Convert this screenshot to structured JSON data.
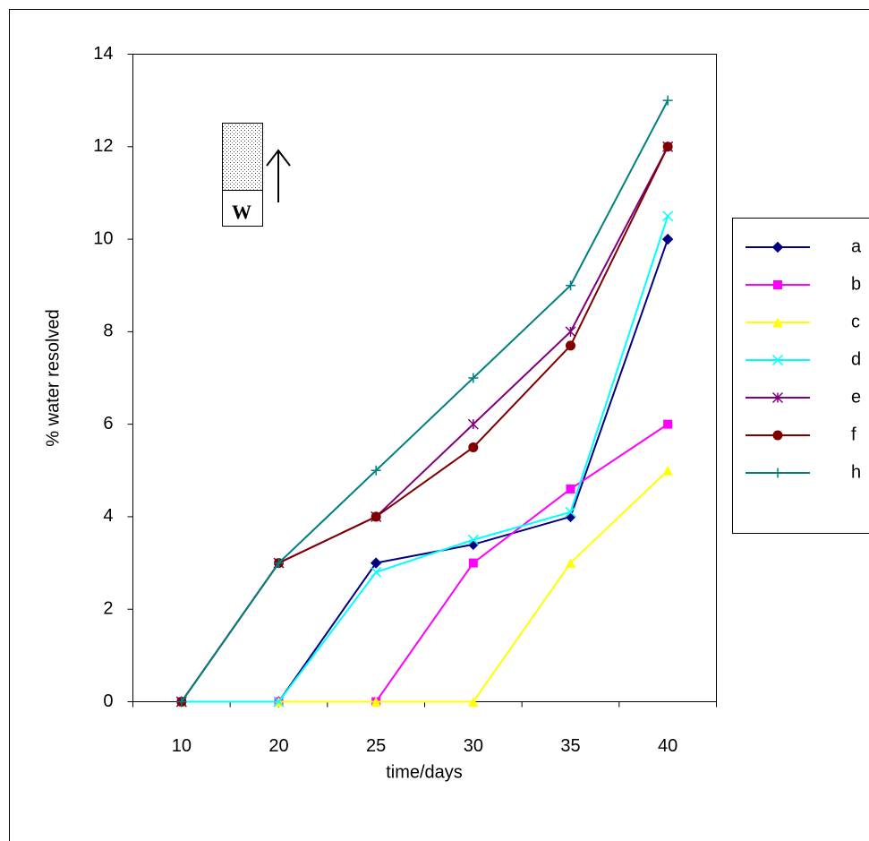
{
  "chart_data": {
    "type": "line",
    "categories": [
      "10",
      "20",
      "25",
      "30",
      "35",
      "40"
    ],
    "series": [
      {
        "name": "a",
        "color": "#000080",
        "marker": "diamond",
        "values": [
          0,
          0,
          3,
          3.4,
          4,
          10
        ]
      },
      {
        "name": "b",
        "color": "#ff00ff",
        "marker": "square",
        "values": [
          0,
          0,
          0,
          3,
          4.6,
          6
        ]
      },
      {
        "name": "c",
        "color": "#ffff00",
        "marker": "triangle",
        "values": [
          0,
          0,
          0,
          0,
          3,
          5
        ]
      },
      {
        "name": "d",
        "color": "#00ffff",
        "marker": "x",
        "values": [
          0,
          0,
          2.8,
          3.5,
          4.1,
          10.5
        ]
      },
      {
        "name": "e",
        "color": "#800080",
        "marker": "star",
        "values": [
          0,
          3,
          4,
          6,
          8,
          12
        ]
      },
      {
        "name": "f",
        "color": "#800000",
        "marker": "circle",
        "values": [
          0,
          3,
          4,
          5.5,
          7.7,
          12
        ]
      },
      {
        "name": "h",
        "color": "#008080",
        "marker": "plus",
        "values": [
          0,
          3,
          5,
          7,
          9,
          13
        ]
      }
    ],
    "ylim": [
      0,
      14
    ],
    "yticks": [
      0,
      2,
      4,
      6,
      8,
      10,
      12,
      14
    ],
    "xlabel": "time/days",
    "ylabel": "% water  resolved",
    "legend": "right",
    "inset_label": "W"
  }
}
